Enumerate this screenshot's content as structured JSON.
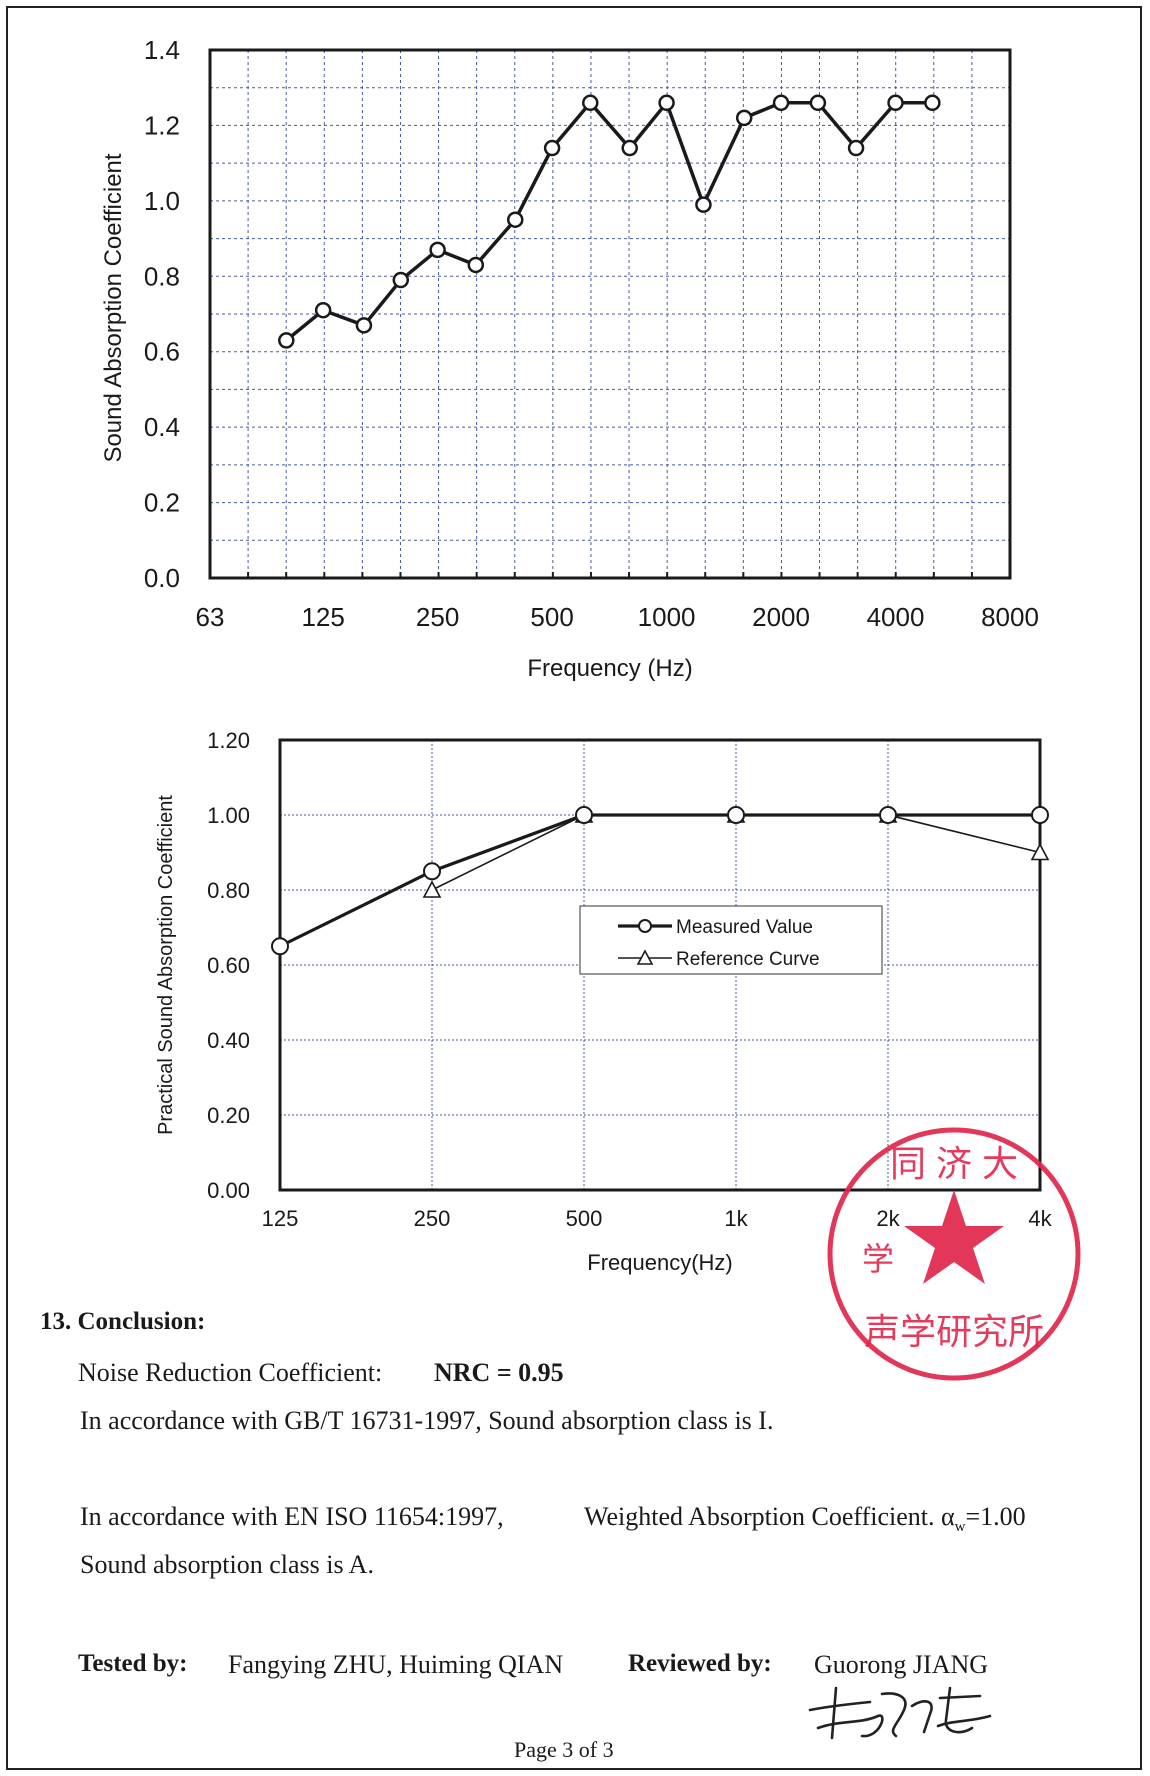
{
  "colors": {
    "ink": "#1a1a1a",
    "grid": "#4a5a9a",
    "stamp": "#e0264a"
  },
  "chart_data": [
    {
      "type": "line",
      "xlabel": "Frequency (Hz)",
      "ylabel": "Sound Absorption Coefficient",
      "ylim": [
        0.0,
        1.4
      ],
      "y_ticks": [
        "0.0",
        "0.2",
        "0.4",
        "0.6",
        "0.8",
        "1.0",
        "1.2",
        "1.4"
      ],
      "x_tick_labels": [
        "63",
        "125",
        "250",
        "500",
        "1000",
        "2000",
        "4000",
        "8000"
      ],
      "x_scale": "log (one-third octave)",
      "grid": true,
      "series": [
        {
          "x": [
            100,
            125,
            160,
            200,
            250,
            315,
            400,
            500,
            630,
            800,
            1000,
            1250,
            1600,
            2000,
            2500,
            3150,
            4000,
            5000
          ],
          "values": [
            0.63,
            0.71,
            0.67,
            0.79,
            0.87,
            0.83,
            0.95,
            1.14,
            1.26,
            1.14,
            1.26,
            0.99,
            1.22,
            1.26,
            1.26,
            1.14,
            1.26,
            1.26
          ]
        }
      ]
    },
    {
      "type": "line",
      "xlabel": "Frequency(Hz)",
      "ylabel": "Practical Sound Absorption Coefficient",
      "ylim": [
        0.0,
        1.2
      ],
      "y_ticks": [
        "0.00",
        "0.20",
        "0.40",
        "0.60",
        "0.80",
        "1.00",
        "1.20"
      ],
      "categories": [
        "125",
        "250",
        "500",
        "1k",
        "2k",
        "4k"
      ],
      "grid": true,
      "legend": "center-right",
      "series": [
        {
          "name": "Measured Value",
          "marker": "circle",
          "values": [
            0.65,
            0.85,
            1.0,
            1.0,
            1.0,
            1.0
          ]
        },
        {
          "name": "Reference Curve",
          "marker": "triangle",
          "values": [
            null,
            0.8,
            1.0,
            1.0,
            1.0,
            0.9
          ]
        }
      ]
    }
  ],
  "conclusion": {
    "heading": "13.  Conclusion:",
    "nrc_label": "Noise Reduction Coefficient:",
    "nrc_value": "NRC = 0.95",
    "gb_line": "In accordance with GB/T 16731-1997, Sound absorption class is I.",
    "iso_line_a": "In accordance with EN ISO 11654:1997,",
    "iso_line_b": "Weighted Absorption Coefficient.",
    "alpha_symbol": "α",
    "alpha_sub": "w",
    "alpha_value": "=1.00",
    "iso_class": "Sound absorption class is A."
  },
  "signoff": {
    "tested_label": "Tested by:",
    "tested_names": "Fangying ZHU, Huiming QIAN",
    "reviewed_label": "Reviewed by:",
    "reviewed_name": "Guorong JIANG"
  },
  "stamp": {
    "text": "同济大学声学研究所"
  },
  "footer": {
    "page": "Page 3 of 3"
  }
}
